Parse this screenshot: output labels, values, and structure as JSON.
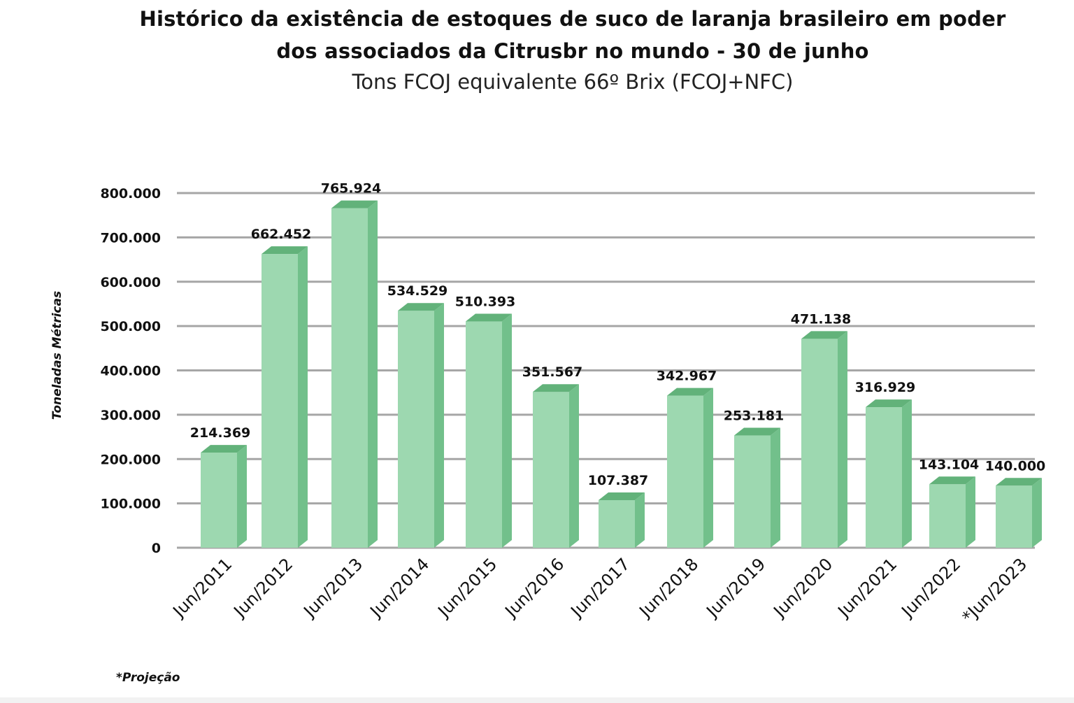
{
  "chart_data": {
    "type": "bar",
    "title": "Histórico da existência de estoques de suco de laranja brasileiro em poder dos associados da Citrusbr no mundo - 30 de junho",
    "title_lines": [
      "Histórico da existência de estoques de suco de laranja brasileiro em poder",
      "dos associados da Citrusbr no mundo - 30 de junho"
    ],
    "subtitle": "Tons FCOJ equivalente 66º Brix (FCOJ+NFC)",
    "xlabel": "",
    "ylabel": "Toneladas Métricas",
    "categories": [
      "Jun/2011",
      "Jun/2012",
      "Jun/2013",
      "Jun/2014",
      "Jun/2015",
      "Jun/2016",
      "Jun/2017",
      "Jun/2018",
      "Jun/2019",
      "Jun/2020",
      "Jun/2021",
      "Jun/2022",
      "*Jun/2023"
    ],
    "values": [
      214369,
      662452,
      765924,
      534529,
      510393,
      351567,
      107387,
      342967,
      253181,
      471138,
      316929,
      143104,
      140000
    ],
    "value_labels": [
      "214.369",
      "662.452",
      "765.924",
      "534.529",
      "510.393",
      "351.567",
      "107.387",
      "342.967",
      "253.181",
      "471.138",
      "316.929",
      "143.104",
      "140.000"
    ],
    "ylim": [
      0,
      800000
    ],
    "yticks": [
      0,
      100000,
      200000,
      300000,
      400000,
      500000,
      600000,
      700000,
      800000
    ],
    "ytick_labels": [
      "0",
      "100.000",
      "200.000",
      "300.000",
      "400.000",
      "500.000",
      "600.000",
      "700.000",
      "800.000"
    ],
    "grid": true,
    "legend": "none",
    "bar_style": "3d",
    "colors": {
      "bar_front": "#9dd8b0",
      "bar_side": "#72c08b",
      "bar_top": "#62b27a",
      "gridline": "#a6a6a6"
    }
  },
  "footnote": "*Projeção"
}
